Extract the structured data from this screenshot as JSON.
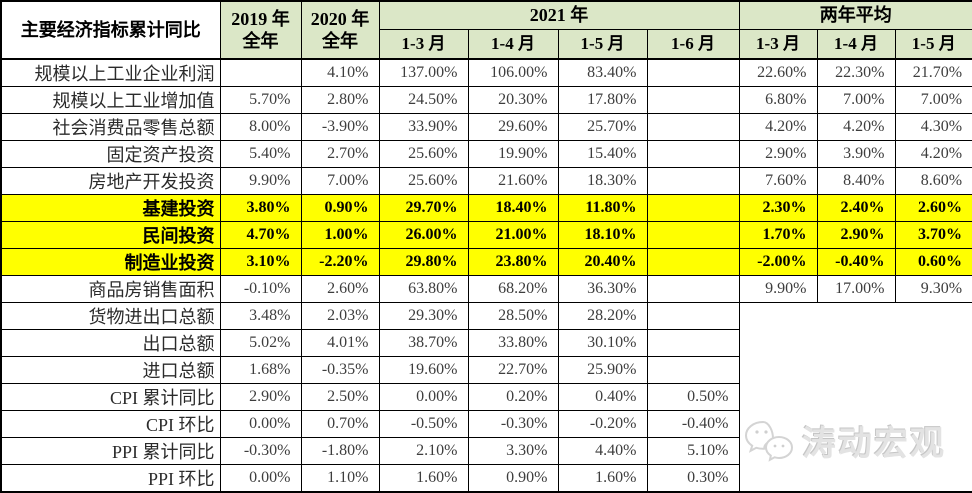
{
  "table": {
    "header": {
      "indicator": "主要经济指标累计同比",
      "y2019": [
        "2019 年",
        "全年"
      ],
      "y2020": [
        "2020 年",
        "全年"
      ],
      "group_2021": "2021 年",
      "group_avg": "两年平均",
      "months_2021": [
        "1-3 月",
        "1-4 月",
        "1-5 月",
        "1-6 月"
      ],
      "months_avg": [
        "1-3 月",
        "1-4 月",
        "1-5 月"
      ]
    },
    "rows": [
      {
        "label": "规模以上工业企业利润",
        "highlight": false,
        "values": [
          "",
          "4.10%",
          "137.00%",
          "106.00%",
          "83.40%",
          ""
        ],
        "avg": [
          "22.60%",
          "22.30%",
          "21.70%"
        ]
      },
      {
        "label": "规模以上工业增加值",
        "highlight": false,
        "values": [
          "5.70%",
          "2.80%",
          "24.50%",
          "20.30%",
          "17.80%",
          ""
        ],
        "avg": [
          "6.80%",
          "7.00%",
          "7.00%"
        ]
      },
      {
        "label": "社会消费品零售总额",
        "highlight": false,
        "values": [
          "8.00%",
          "-3.90%",
          "33.90%",
          "29.60%",
          "25.70%",
          ""
        ],
        "avg": [
          "4.20%",
          "4.20%",
          "4.30%"
        ]
      },
      {
        "label": "固定资产投资",
        "highlight": false,
        "values": [
          "5.40%",
          "2.70%",
          "25.60%",
          "19.90%",
          "15.40%",
          ""
        ],
        "avg": [
          "2.90%",
          "3.90%",
          "4.20%"
        ]
      },
      {
        "label": "房地产开发投资",
        "highlight": false,
        "values": [
          "9.90%",
          "7.00%",
          "25.60%",
          "21.60%",
          "18.30%",
          ""
        ],
        "avg": [
          "7.60%",
          "8.40%",
          "8.60%"
        ]
      },
      {
        "label": "基建投资",
        "highlight": true,
        "values": [
          "3.80%",
          "0.90%",
          "29.70%",
          "18.40%",
          "11.80%",
          ""
        ],
        "avg": [
          "2.30%",
          "2.40%",
          "2.60%"
        ]
      },
      {
        "label": "民间投资",
        "highlight": true,
        "values": [
          "4.70%",
          "1.00%",
          "26.00%",
          "21.00%",
          "18.10%",
          ""
        ],
        "avg": [
          "1.70%",
          "2.90%",
          "3.70%"
        ]
      },
      {
        "label": "制造业投资",
        "highlight": true,
        "values": [
          "3.10%",
          "-2.20%",
          "29.80%",
          "23.80%",
          "20.40%",
          ""
        ],
        "avg": [
          "-2.00%",
          "-0.40%",
          "0.60%"
        ]
      },
      {
        "label": "商品房销售面积",
        "highlight": false,
        "values": [
          "-0.10%",
          "2.60%",
          "63.80%",
          "68.20%",
          "36.30%",
          ""
        ],
        "avg": [
          "9.90%",
          "17.00%",
          "9.30%"
        ]
      },
      {
        "label": "货物进出口总额",
        "highlight": false,
        "values": [
          "3.48%",
          "2.03%",
          "29.30%",
          "28.50%",
          "28.20%",
          ""
        ],
        "avg": null
      },
      {
        "label": "出口总额",
        "highlight": false,
        "values": [
          "5.02%",
          "4.01%",
          "38.70%",
          "33.80%",
          "30.10%",
          ""
        ],
        "avg": null
      },
      {
        "label": "进口总额",
        "highlight": false,
        "values": [
          "1.68%",
          "-0.35%",
          "19.60%",
          "22.70%",
          "25.90%",
          ""
        ],
        "avg": null
      },
      {
        "label": "CPI 累计同比",
        "highlight": false,
        "values": [
          "2.90%",
          "2.50%",
          "0.00%",
          "0.20%",
          "0.40%",
          "0.50%"
        ],
        "avg": null
      },
      {
        "label": "CPI 环比",
        "highlight": false,
        "values": [
          "0.00%",
          "0.70%",
          "-0.50%",
          "-0.30%",
          "-0.20%",
          "-0.40%"
        ],
        "avg": null
      },
      {
        "label": "PPI 累计同比",
        "highlight": false,
        "values": [
          "-0.30%",
          "-1.80%",
          "2.10%",
          "3.30%",
          "4.40%",
          "5.10%"
        ],
        "avg": null
      },
      {
        "label": "PPI 环比",
        "highlight": false,
        "values": [
          "0.00%",
          "1.10%",
          "1.60%",
          "0.90%",
          "1.60%",
          "0.30%"
        ],
        "avg": null
      }
    ]
  },
  "watermark": {
    "text": "涛动宏观",
    "icon": "wechat-icon"
  },
  "colors": {
    "header_bg": "#dbe7c7",
    "indicator_header_bg": "#ffffff",
    "highlight_bg": "#ffff00",
    "border": "#000000",
    "value_text": "#3d3d3d",
    "watermark": "#e3e3e3"
  }
}
